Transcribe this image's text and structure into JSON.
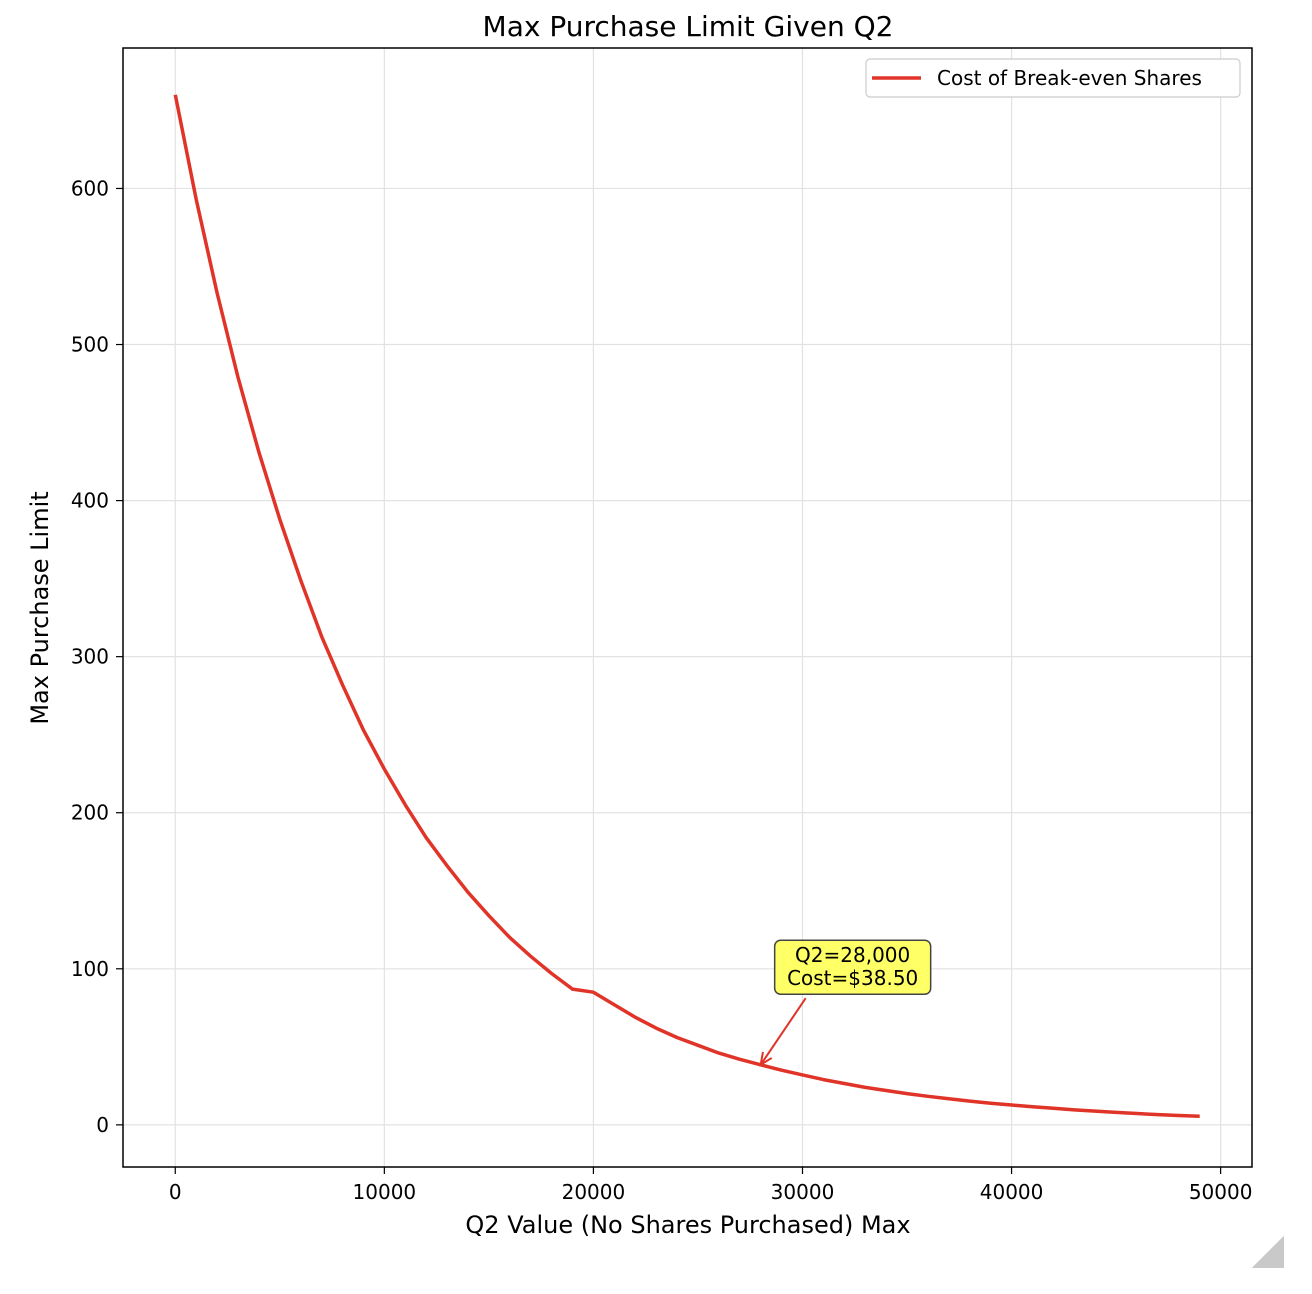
{
  "chart_data": {
    "type": "line",
    "title": "Max Purchase Limit Given Q2",
    "xlabel": "Q2 Value (No Shares Purchased) Max",
    "ylabel": "Max Purchase Limit",
    "xlim": [
      -2500,
      51500
    ],
    "ylim": [
      -27,
      690
    ],
    "xticks": [
      0,
      10000,
      20000,
      30000,
      40000,
      50000
    ],
    "yticks": [
      0,
      100,
      200,
      300,
      400,
      500,
      600
    ],
    "grid": true,
    "legend_position": "top-right",
    "series": [
      {
        "name": "Cost of Break-even Shares",
        "color": "#e03428",
        "x": [
          0,
          1000,
          2000,
          3000,
          4000,
          5000,
          6000,
          7000,
          8000,
          9000,
          10000,
          11000,
          12000,
          13000,
          14000,
          15000,
          16000,
          17000,
          18000,
          19000,
          20000,
          21000,
          22000,
          23000,
          24000,
          25000,
          26000,
          27000,
          28000,
          29000,
          30000,
          31000,
          32000,
          33000,
          34000,
          35000,
          36000,
          37000,
          38000,
          39000,
          40000,
          41000,
          42000,
          43000,
          44000,
          45000,
          46000,
          47000,
          48000,
          49000
        ],
        "y": [
          660,
          593,
          533,
          479,
          431,
          388,
          349,
          313,
          282,
          253,
          228,
          205,
          184,
          166,
          149,
          134,
          120,
          108,
          97,
          87,
          85,
          77,
          69,
          62,
          56,
          51,
          46,
          42,
          38.5,
          35,
          32,
          29,
          26.5,
          24,
          22,
          20,
          18.3,
          16.7,
          15.2,
          13.9,
          12.7,
          11.6,
          10.6,
          9.6,
          8.8,
          8,
          7.3,
          6.6,
          6,
          5.5
        ]
      }
    ],
    "annotations": [
      {
        "text_line1": "Q2=28,000",
        "text_line2": "Cost=$38.50",
        "x": 28000,
        "y": 38.5,
        "text_x": 32400,
        "text_y": 101,
        "box_color": "#ffff66",
        "arrow_color": "#e03428"
      }
    ]
  }
}
